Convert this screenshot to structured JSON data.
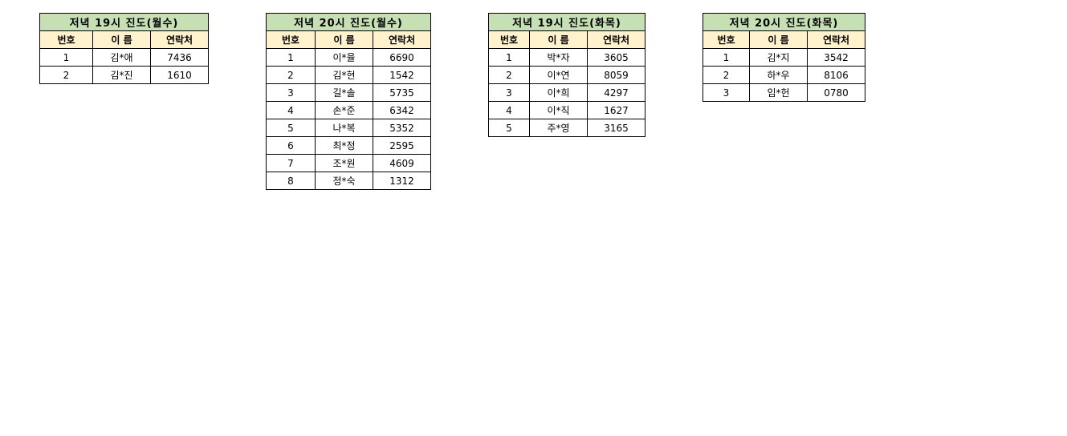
{
  "headers": {
    "no": "번호",
    "name": "이 름",
    "contact": "연락처"
  },
  "colors": {
    "title_bg": "#c6e0b4",
    "header_bg": "#fff2cc"
  },
  "tables": [
    {
      "title": "저녁 19시 진도(월수)",
      "rows": [
        {
          "no": "1",
          "name": "김*애",
          "contact": "7436"
        },
        {
          "no": "2",
          "name": "김*진",
          "contact": "1610"
        }
      ]
    },
    {
      "title": "저녁 20시 진도(월수)",
      "rows": [
        {
          "no": "1",
          "name": "이*율",
          "contact": "6690"
        },
        {
          "no": "2",
          "name": "김*현",
          "contact": "1542"
        },
        {
          "no": "3",
          "name": "길*솔",
          "contact": "5735"
        },
        {
          "no": "4",
          "name": "손*준",
          "contact": "6342"
        },
        {
          "no": "5",
          "name": "나*복",
          "contact": "5352"
        },
        {
          "no": "6",
          "name": "최*정",
          "contact": "2595"
        },
        {
          "no": "7",
          "name": "조*원",
          "contact": "4609"
        },
        {
          "no": "8",
          "name": "정*숙",
          "contact": "1312"
        }
      ]
    },
    {
      "title": "저녁 19시 진도(화목)",
      "rows": [
        {
          "no": "1",
          "name": "박*자",
          "contact": "3605"
        },
        {
          "no": "2",
          "name": "이*연",
          "contact": "8059"
        },
        {
          "no": "3",
          "name": "이*희",
          "contact": "4297"
        },
        {
          "no": "4",
          "name": "이*직",
          "contact": "1627"
        },
        {
          "no": "5",
          "name": "주*영",
          "contact": "3165"
        }
      ]
    },
    {
      "title": "저녁 20시 진도(화목)",
      "rows": [
        {
          "no": "1",
          "name": "김*지",
          "contact": "3542"
        },
        {
          "no": "2",
          "name": "하*우",
          "contact": "8106"
        },
        {
          "no": "3",
          "name": "임*헌",
          "contact": "0780"
        }
      ]
    }
  ]
}
